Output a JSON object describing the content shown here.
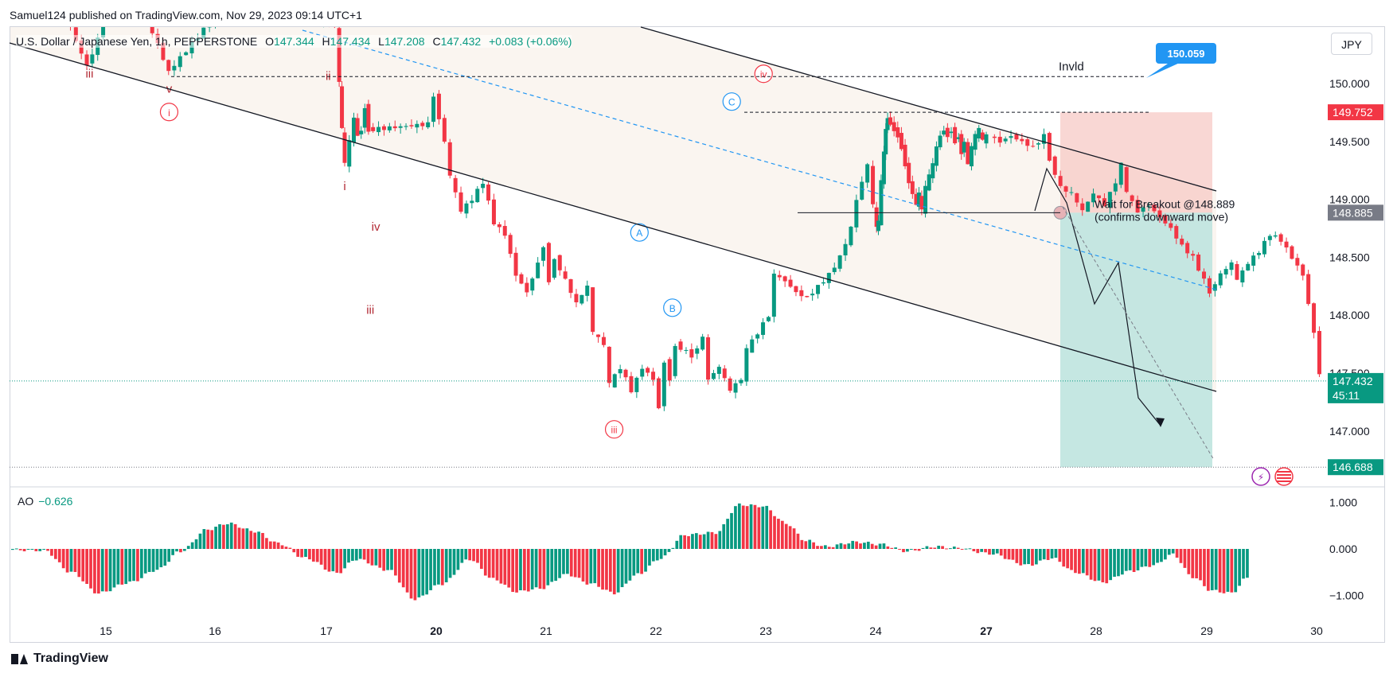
{
  "header": {
    "published": "Samuel124 published on TradingView.com, Nov 29, 2023 09:14 UTC+1",
    "symbol": "U.S. Dollar / Japanese Yen, 1h, PEPPERSTONE",
    "o_label": "O",
    "o_value": "147.344",
    "h_label": "H",
    "h_value": "147.434",
    "l_label": "L",
    "l_value": "147.208",
    "c_label": "C",
    "c_value": "147.432",
    "change": "+0.083 (+0.06%)",
    "currency_button": "JPY"
  },
  "footer": {
    "brand": "TradingView"
  },
  "colors": {
    "up": "#089981",
    "down": "#f23645",
    "wave": "#b22833",
    "abc": "#2196f3",
    "short_stop": "#f7c9c6",
    "short_target": "#bfe4df",
    "channel_fill": "#faf5f0"
  },
  "chart_data": [
    {
      "type": "candlestick",
      "title": "U.S. Dollar / Japanese Yen, 1h, PEPPERSTONE",
      "ylim": [
        146.55,
        150.5
      ],
      "price_ticks": [
        "150.000",
        "149.500",
        "149.000",
        "148.500",
        "148.000",
        "147.500",
        "147.000"
      ],
      "x_ticks": [
        {
          "day": 15,
          "label": "15",
          "bold": false
        },
        {
          "day": 16,
          "label": "16",
          "bold": false
        },
        {
          "day": 17,
          "label": "17",
          "bold": false
        },
        {
          "day": 20,
          "label": "20",
          "bold": true
        },
        {
          "day": 21,
          "label": "21",
          "bold": false
        },
        {
          "day": 22,
          "label": "22",
          "bold": false
        },
        {
          "day": 23,
          "label": "23",
          "bold": false
        },
        {
          "day": 24,
          "label": "24",
          "bold": false
        },
        {
          "day": 27,
          "label": "27",
          "bold": true
        },
        {
          "day": 28,
          "label": "28",
          "bold": false
        },
        {
          "day": 29,
          "label": "29",
          "bold": false
        },
        {
          "day": 30,
          "label": "30",
          "bold": false
        }
      ],
      "price_path": [
        [
          14.3,
          150.55
        ],
        [
          14.6,
          150.7
        ],
        [
          14.85,
          150.15
        ],
        [
          15.0,
          150.5
        ],
        [
          15.3,
          150.8
        ],
        [
          15.6,
          150.1
        ],
        [
          16.3,
          150.9
        ],
        [
          16.7,
          150.6
        ],
        [
          17.0,
          150.55
        ],
        [
          17.3,
          150.5
        ],
        [
          17.4,
          150.0
        ],
        [
          17.45,
          149.6
        ],
        [
          17.55,
          149.3
        ],
        [
          17.7,
          149.5
        ],
        [
          17.8,
          149.7
        ],
        [
          17.9,
          149.55
        ],
        [
          18.0,
          149.6
        ],
        [
          18.1,
          149.8
        ],
        [
          18.2,
          149.6
        ],
        [
          19.85,
          149.65
        ],
        [
          20.0,
          149.9
        ],
        [
          20.05,
          149.7
        ],
        [
          20.1,
          149.5
        ],
        [
          20.15,
          149.2
        ],
        [
          20.25,
          148.9
        ],
        [
          20.35,
          149.0
        ],
        [
          20.45,
          149.15
        ],
        [
          20.55,
          148.8
        ],
        [
          20.65,
          148.7
        ],
        [
          20.75,
          148.35
        ],
        [
          20.85,
          148.2
        ],
        [
          20.95,
          148.45
        ],
        [
          21.0,
          148.6
        ],
        [
          21.05,
          148.3
        ],
        [
          21.1,
          148.5
        ],
        [
          21.2,
          148.3
        ],
        [
          21.3,
          148.1
        ],
        [
          21.4,
          148.25
        ],
        [
          21.45,
          147.85
        ],
        [
          21.55,
          147.75
        ],
        [
          21.6,
          147.4
        ],
        [
          21.7,
          147.55
        ],
        [
          21.8,
          147.35
        ],
        [
          21.9,
          147.55
        ],
        [
          22.0,
          147.45
        ],
        [
          22.05,
          147.2
        ],
        [
          22.1,
          147.6
        ],
        [
          22.15,
          147.45
        ],
        [
          22.2,
          147.75
        ],
        [
          22.35,
          147.65
        ],
        [
          22.45,
          147.8
        ],
        [
          22.5,
          147.45
        ],
        [
          22.6,
          147.55
        ],
        [
          22.7,
          147.35
        ],
        [
          22.8,
          147.45
        ],
        [
          22.85,
          147.7
        ],
        [
          22.95,
          147.85
        ],
        [
          23.05,
          148.0
        ],
        [
          23.1,
          148.35
        ],
        [
          23.2,
          148.3
        ],
        [
          23.3,
          148.2
        ],
        [
          23.4,
          148.15
        ],
        [
          23.5,
          148.25
        ],
        [
          23.6,
          148.35
        ],
        [
          23.7,
          148.5
        ],
        [
          23.8,
          148.75
        ],
        [
          23.85,
          149.0
        ],
        [
          23.95,
          149.3
        ],
        [
          24.0,
          148.95
        ],
        [
          24.05,
          148.75
        ],
        [
          24.1,
          148.8
        ],
        [
          24.2,
          149.15
        ],
        [
          24.25,
          149.4
        ],
        [
          24.3,
          149.6
        ],
        [
          24.35,
          149.7
        ],
        [
          24.45,
          149.65
        ],
        [
          24.55,
          149.6
        ],
        [
          24.65,
          149.55
        ],
        [
          24.75,
          149.45
        ],
        [
          24.85,
          149.3
        ],
        [
          24.95,
          149.15
        ],
        [
          25.05,
          149.05
        ],
        [
          25.15,
          148.95
        ],
        [
          25.2,
          149.05
        ],
        [
          25.3,
          148.9
        ],
        [
          25.4,
          149.1
        ],
        [
          25.5,
          149.2
        ],
        [
          25.6,
          149.3
        ],
        [
          25.7,
          149.45
        ],
        [
          25.8,
          149.55
        ],
        [
          25.9,
          149.6
        ],
        [
          26.0,
          149.55
        ],
        [
          26.1,
          149.6
        ],
        [
          26.2,
          149.5
        ],
        [
          26.3,
          149.55
        ],
        [
          26.35,
          149.4
        ],
        [
          26.45,
          149.5
        ],
        [
          26.55,
          149.3
        ],
        [
          26.65,
          149.45
        ],
        [
          26.75,
          149.55
        ],
        [
          26.85,
          149.6
        ],
        [
          26.95,
          149.5
        ],
        [
          27.05,
          149.55
        ],
        [
          27.15,
          149.5
        ],
        [
          27.25,
          149.55
        ],
        [
          27.35,
          149.5
        ],
        [
          27.45,
          149.45
        ],
        [
          27.55,
          149.55
        ],
        [
          27.6,
          149.35
        ],
        [
          27.7,
          149.1
        ],
        [
          27.8,
          149.05
        ],
        [
          27.9,
          148.9
        ],
        [
          28.0,
          149.05
        ],
        [
          28.1,
          148.95
        ],
        [
          28.2,
          149.15
        ],
        [
          28.25,
          149.3
        ],
        [
          28.3,
          149.05
        ],
        [
          28.4,
          148.9
        ],
        [
          28.5,
          148.95
        ],
        [
          28.6,
          148.85
        ],
        [
          28.7,
          148.75
        ],
        [
          28.8,
          148.6
        ],
        [
          28.9,
          148.5
        ],
        [
          29.0,
          148.3
        ],
        [
          29.05,
          148.2
        ],
        [
          29.15,
          148.35
        ],
        [
          29.25,
          148.45
        ],
        [
          29.3,
          148.3
        ],
        [
          29.4,
          148.45
        ],
        [
          29.5,
          148.55
        ],
        [
          29.6,
          148.7
        ],
        [
          29.7,
          148.65
        ],
        [
          29.8,
          148.5
        ],
        [
          29.9,
          148.35
        ],
        [
          30.0,
          147.85
        ],
        [
          30.05,
          147.5
        ],
        [
          30.1,
          147.65
        ],
        [
          30.2,
          147.6
        ],
        [
          30.3,
          147.45
        ],
        [
          30.35,
          147.4
        ],
        [
          30.4,
          147.15
        ],
        [
          30.45,
          146.8
        ],
        [
          30.5,
          146.95
        ],
        [
          30.6,
          147.0
        ],
        [
          30.65,
          147.2
        ],
        [
          30.75,
          147.15
        ],
        [
          30.85,
          147.3
        ],
        [
          30.95,
          147.4
        ],
        [
          31.0,
          147.43
        ]
      ],
      "reference_lines": {
        "invld": 150.06,
        "stop": 149.752,
        "entry": 148.885,
        "target": 146.688,
        "current": 147.432
      },
      "price_badges": [
        {
          "label": "150.059",
          "style": "callout"
        },
        {
          "label": "149.752",
          "style": "stop"
        },
        {
          "label": "148.885",
          "style": "entry"
        },
        {
          "label": "147.432",
          "style": "current"
        },
        {
          "label": "45:11",
          "style": "countdown"
        },
        {
          "label": "146.688",
          "style": "target"
        }
      ],
      "annotations": [
        {
          "text": "Invld",
          "color": "#131722"
        },
        {
          "text": "Wait for Breakout @148.889",
          "color": "#131722"
        },
        {
          "text": "(confirms downward move)",
          "color": "#131722"
        }
      ],
      "wave_labels": [
        {
          "text": "iii",
          "day": 14.85,
          "price": 150.05,
          "circled": false,
          "color": "#b22833"
        },
        {
          "text": "v",
          "day": 15.58,
          "price": 149.92,
          "circled": false,
          "color": "#b22833"
        },
        {
          "text": "i",
          "day": 15.58,
          "price": 149.72,
          "circled": true,
          "color": "#f23645"
        },
        {
          "text": "ii",
          "day": 17.05,
          "price": 150.03,
          "circled": false,
          "color": "#b22833"
        },
        {
          "text": "i",
          "day": 17.5,
          "price": 149.08,
          "circled": false,
          "color": "#b22833"
        },
        {
          "text": "iv",
          "day": 18.35,
          "price": 148.73,
          "circled": false,
          "color": "#b22833"
        },
        {
          "text": "iii",
          "day": 18.2,
          "price": 148.01,
          "circled": false,
          "color": "#b22833"
        },
        {
          "text": "iii",
          "day": 21.62,
          "price": 146.98,
          "circled": true,
          "color": "#f23645"
        },
        {
          "text": "iv",
          "day": 22.98,
          "price": 150.05,
          "circled": true,
          "color": "#f23645"
        },
        {
          "text": "A",
          "day": 21.85,
          "price": 148.68,
          "circled": true,
          "color": "#2196f3"
        },
        {
          "text": "B",
          "day": 22.15,
          "price": 148.03,
          "circled": true,
          "color": "#2196f3"
        },
        {
          "text": "C",
          "day": 22.69,
          "price": 149.81,
          "circled": true,
          "color": "#2196f3"
        }
      ]
    },
    {
      "type": "bar",
      "title": "AO",
      "current_value": "−0.626",
      "ylim": [
        -1.35,
        1.1
      ],
      "y_ticks": [
        "1.000",
        "0.000",
        "−1.000"
      ],
      "keyframes": [
        [
          0,
          -0.02
        ],
        [
          8,
          -0.03
        ],
        [
          15,
          -0.5
        ],
        [
          22,
          -0.95
        ],
        [
          30,
          -0.72
        ],
        [
          37,
          -0.45
        ],
        [
          43,
          -0.05
        ],
        [
          50,
          0.42
        ],
        [
          55,
          0.55
        ],
        [
          62,
          0.38
        ],
        [
          68,
          0.12
        ],
        [
          75,
          -0.2
        ],
        [
          83,
          -0.52
        ],
        [
          88,
          -0.22
        ],
        [
          96,
          -0.45
        ],
        [
          103,
          -1.08
        ],
        [
          110,
          -0.75
        ],
        [
          117,
          -0.22
        ],
        [
          123,
          -0.65
        ],
        [
          129,
          -0.92
        ],
        [
          135,
          -0.85
        ],
        [
          142,
          -0.55
        ],
        [
          148,
          -0.75
        ],
        [
          154,
          -0.95
        ],
        [
          160,
          -0.55
        ],
        [
          166,
          -0.2
        ],
        [
          172,
          0.3
        ],
        [
          180,
          0.35
        ],
        [
          186,
          0.95
        ],
        [
          192,
          0.92
        ],
        [
          198,
          0.55
        ],
        [
          203,
          0.18
        ],
        [
          208,
          0.05
        ],
        [
          216,
          0.15
        ],
        [
          222,
          0.1
        ],
        [
          229,
          -0.05
        ],
        [
          236,
          0.05
        ],
        [
          242,
          0.02
        ],
        [
          250,
          -0.1
        ],
        [
          260,
          -0.35
        ],
        [
          266,
          -0.2
        ],
        [
          272,
          -0.5
        ],
        [
          279,
          -0.72
        ],
        [
          286,
          -0.48
        ],
        [
          292,
          -0.35
        ],
        [
          297,
          -0.12
        ],
        [
          302,
          -0.6
        ],
        [
          307,
          -0.9
        ],
        [
          312,
          -0.95
        ],
        [
          316,
          -0.62
        ]
      ]
    }
  ]
}
